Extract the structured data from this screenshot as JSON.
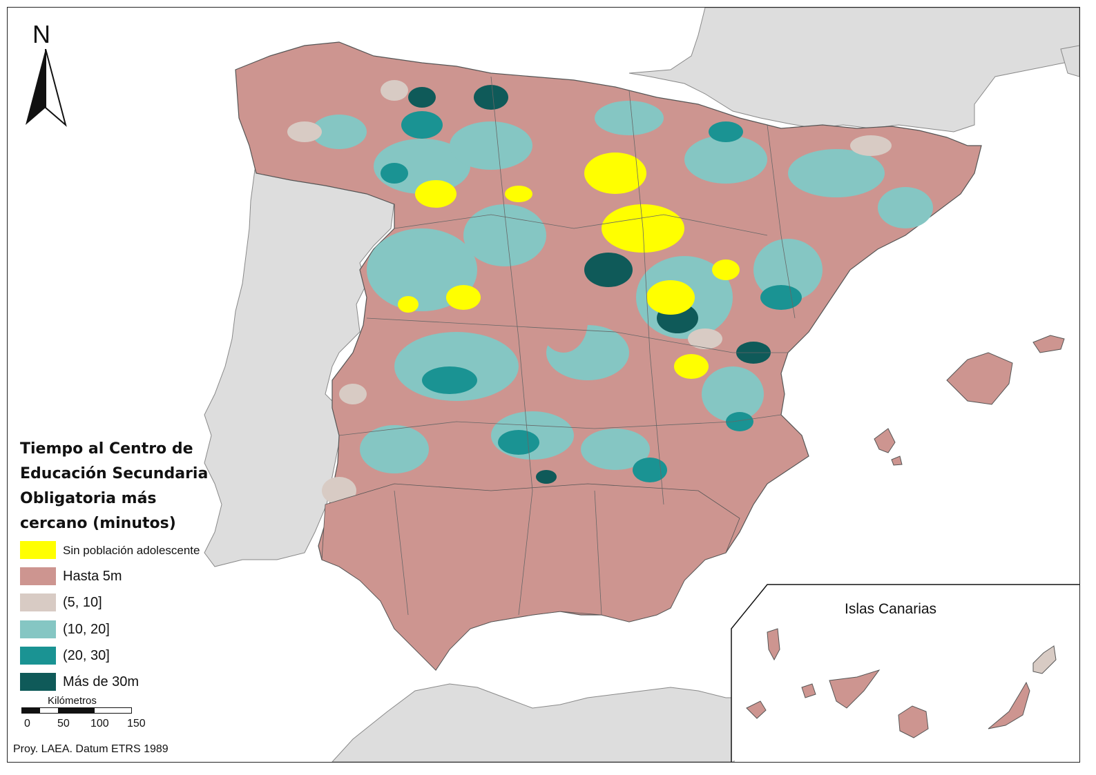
{
  "legend": {
    "title_lines": [
      "Tiempo al Centro de",
      "Educación Secundaria",
      "Obligatoria más",
      "cercano (minutos)"
    ],
    "items": [
      {
        "label": "Sin población adolescente",
        "color": "#ffff00"
      },
      {
        "label": "Hasta 5m",
        "color": "#cd9590"
      },
      {
        "label": "(5, 10]",
        "color": "#d8cbc4"
      },
      {
        "label": "(10, 20]",
        "color": "#85c6c3"
      },
      {
        "label": "(20, 30]",
        "color": "#1a9393"
      },
      {
        "label": "Más de 30m",
        "color": "#0f5a59"
      }
    ]
  },
  "north_arrow": {
    "letter": "N"
  },
  "scale_bar": {
    "title": "Kilómetros",
    "ticks": [
      "0",
      "50",
      "100",
      "150"
    ]
  },
  "projection": "Proy. LAEA. Datum ETRS 1989",
  "inset": {
    "label": "Islas Canarias"
  },
  "colors": {
    "land_other": "#dddddd",
    "sea": "#ffffff",
    "border": "#555555"
  }
}
